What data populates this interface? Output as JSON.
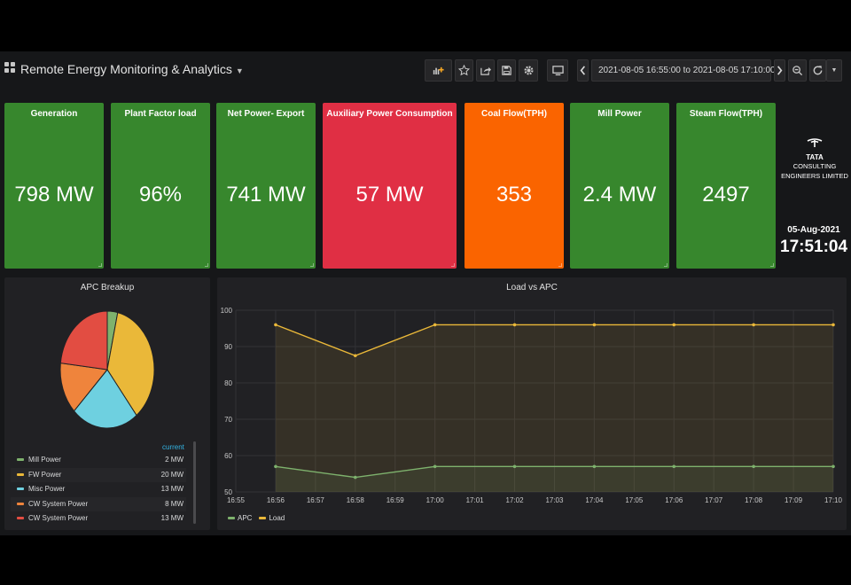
{
  "header": {
    "title": "Remote Energy Monitoring & Analytics",
    "time_range": "2021-08-05 16:55:00 to 2021-08-05 17:10:00"
  },
  "icons": {
    "app": "grid-icon",
    "add_panel": "add-panel-icon",
    "star": "star-icon",
    "share": "share-icon",
    "save": "save-icon",
    "settings": "gear-icon",
    "tv": "monitor-icon",
    "prev": "chevron-left-icon",
    "clock": "clock-icon",
    "next": "chevron-right-icon",
    "zoom": "zoom-out-icon",
    "refresh": "refresh-icon",
    "refresh_menu": "caret-down-icon"
  },
  "stats": [
    {
      "title": "Generation",
      "value": "798 MW",
      "color": "#37872d"
    },
    {
      "title": "Plant Factor load",
      "value": "96%",
      "color": "#37872d"
    },
    {
      "title": "Net Power- Export",
      "value": "741 MW",
      "color": "#37872d"
    },
    {
      "title": "Auxiliary Power Consumption",
      "value": "57 MW",
      "color": "#e02f44"
    },
    {
      "title": "Coal Flow(TPH)",
      "value": "353",
      "color": "#fa6400"
    },
    {
      "title": "Mill Power",
      "value": "2.4 MW",
      "color": "#37872d"
    },
    {
      "title": "Steam Flow(TPH)",
      "value": "2497",
      "color": "#37872d"
    }
  ],
  "brand": {
    "name": "TATA",
    "line1": "CONSULTING",
    "line2": "ENGINEERS LIMITED"
  },
  "clock": {
    "date": "05-Aug-2021",
    "time": "17:51:04"
  },
  "apc_panel": {
    "title": "APC Breakup",
    "legend_header": "current",
    "chart_data": {
      "type": "pie",
      "slices": [
        {
          "name": "Mill Power",
          "value": 2,
          "label": "2 MW",
          "color": "#7eb26d"
        },
        {
          "name": "FW Power",
          "value": 20,
          "label": "20 MW",
          "color": "#eab839"
        },
        {
          "name": "Misc Power",
          "value": 13,
          "label": "13 MW",
          "color": "#6ed0e0"
        },
        {
          "name": "CW System Power",
          "value": 8,
          "label": "8 MW",
          "color": "#ef843c"
        },
        {
          "name": "CW System Power",
          "value": 13,
          "label": "13 MW",
          "color": "#e24d42"
        }
      ]
    }
  },
  "load_panel": {
    "title": "Load vs APC",
    "chart_data": {
      "type": "line",
      "x": [
        "16:55",
        "16:56",
        "16:57",
        "16:58",
        "16:59",
        "17:00",
        "17:01",
        "17:02",
        "17:03",
        "17:04",
        "17:05",
        "17:06",
        "17:07",
        "17:08",
        "17:09",
        "17:10"
      ],
      "series": [
        {
          "name": "APC",
          "color": "#7eb26d",
          "values": [
            null,
            57,
            null,
            54,
            null,
            57,
            null,
            57,
            null,
            57,
            null,
            57,
            null,
            57,
            null,
            57
          ]
        },
        {
          "name": "Load",
          "color": "#eab839",
          "values": [
            null,
            96,
            null,
            87.5,
            null,
            96,
            null,
            96,
            null,
            96,
            null,
            96,
            null,
            96,
            null,
            96
          ]
        }
      ],
      "yticks": [
        50,
        60,
        70,
        80,
        90,
        100
      ],
      "ylim": [
        50,
        100
      ],
      "grid": true,
      "legend": "bottom-left"
    }
  }
}
